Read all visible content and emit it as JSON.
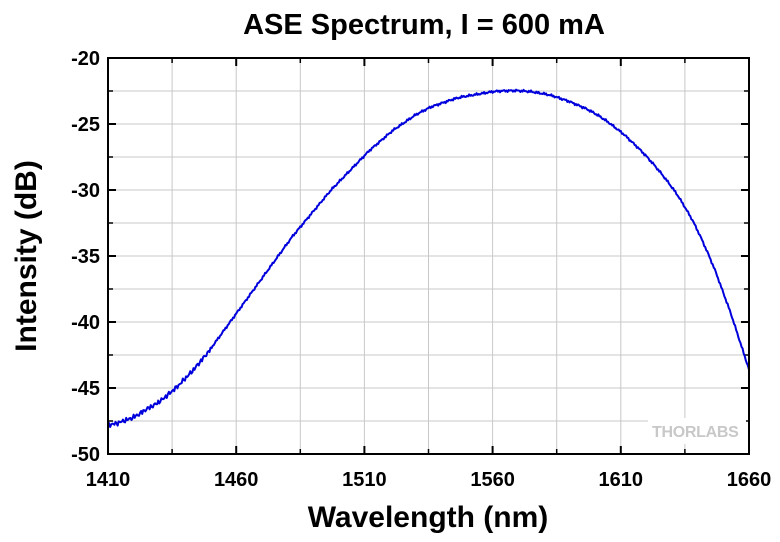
{
  "chart_data": {
    "type": "line",
    "title": "ASE Spectrum, I = 600 mA",
    "xlabel": "Wavelength (nm)",
    "ylabel": "Intensity (dB)",
    "xlim": [
      1410,
      1660
    ],
    "ylim": [
      -50,
      -20
    ],
    "x_ticks": [
      1410,
      1460,
      1510,
      1560,
      1610,
      1660
    ],
    "y_ticks": [
      -20,
      -25,
      -30,
      -35,
      -40,
      -45,
      -50
    ],
    "grid": true,
    "series": [
      {
        "color": "#0000dd",
        "points": [
          [
            1410,
            -47.8
          ],
          [
            1413,
            -47.7
          ],
          [
            1416,
            -47.5
          ],
          [
            1419,
            -47.3
          ],
          [
            1422,
            -47.0
          ],
          [
            1425,
            -46.6
          ],
          [
            1428,
            -46.3
          ],
          [
            1431,
            -45.9
          ],
          [
            1434,
            -45.4
          ],
          [
            1437,
            -44.9
          ],
          [
            1440,
            -44.3
          ],
          [
            1443,
            -43.7
          ],
          [
            1446,
            -43.0
          ],
          [
            1449,
            -42.3
          ],
          [
            1452,
            -41.5
          ],
          [
            1455,
            -40.7
          ],
          [
            1458,
            -39.9
          ],
          [
            1461,
            -39.1
          ],
          [
            1464,
            -38.3
          ],
          [
            1467,
            -37.5
          ],
          [
            1470,
            -36.7
          ],
          [
            1473,
            -35.9
          ],
          [
            1476,
            -35.1
          ],
          [
            1479,
            -34.3
          ],
          [
            1482,
            -33.5
          ],
          [
            1485,
            -32.8
          ],
          [
            1488,
            -32.1
          ],
          [
            1491,
            -31.4
          ],
          [
            1494,
            -30.7
          ],
          [
            1497,
            -30.0
          ],
          [
            1500,
            -29.4
          ],
          [
            1503,
            -28.8
          ],
          [
            1506,
            -28.2
          ],
          [
            1509,
            -27.6
          ],
          [
            1512,
            -27.0
          ],
          [
            1515,
            -26.5
          ],
          [
            1518,
            -26.0
          ],
          [
            1521,
            -25.5
          ],
          [
            1524,
            -25.1
          ],
          [
            1527,
            -24.7
          ],
          [
            1530,
            -24.3
          ],
          [
            1533,
            -24.0
          ],
          [
            1536,
            -23.7
          ],
          [
            1539,
            -23.5
          ],
          [
            1542,
            -23.3
          ],
          [
            1545,
            -23.1
          ],
          [
            1548,
            -22.95
          ],
          [
            1551,
            -22.85
          ],
          [
            1554,
            -22.75
          ],
          [
            1557,
            -22.65
          ],
          [
            1560,
            -22.55
          ],
          [
            1563,
            -22.5
          ],
          [
            1566,
            -22.48
          ],
          [
            1569,
            -22.47
          ],
          [
            1572,
            -22.5
          ],
          [
            1575,
            -22.55
          ],
          [
            1578,
            -22.65
          ],
          [
            1581,
            -22.75
          ],
          [
            1584,
            -22.9
          ],
          [
            1587,
            -23.1
          ],
          [
            1590,
            -23.3
          ],
          [
            1593,
            -23.55
          ],
          [
            1596,
            -23.8
          ],
          [
            1599,
            -24.1
          ],
          [
            1602,
            -24.45
          ],
          [
            1605,
            -24.85
          ],
          [
            1608,
            -25.3
          ],
          [
            1611,
            -25.75
          ],
          [
            1614,
            -26.3
          ],
          [
            1617,
            -26.85
          ],
          [
            1620,
            -27.45
          ],
          [
            1623,
            -28.1
          ],
          [
            1626,
            -28.8
          ],
          [
            1629,
            -29.55
          ],
          [
            1632,
            -30.35
          ],
          [
            1635,
            -31.3
          ],
          [
            1638,
            -32.3
          ],
          [
            1641,
            -33.5
          ],
          [
            1644,
            -34.8
          ],
          [
            1647,
            -36.2
          ],
          [
            1650,
            -37.8
          ],
          [
            1653,
            -39.4
          ],
          [
            1656,
            -41.2
          ],
          [
            1660,
            -43.6
          ]
        ]
      }
    ]
  },
  "watermark": "THORLABS"
}
